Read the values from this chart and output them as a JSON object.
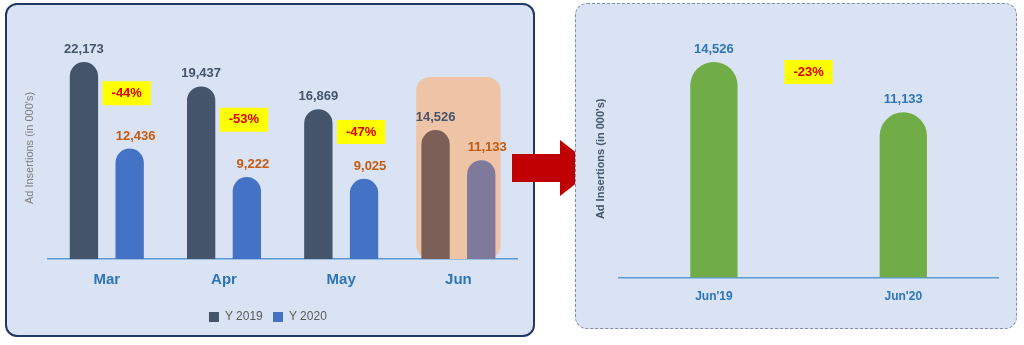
{
  "chart_data": [
    {
      "type": "bar",
      "ylabel": "Ad Insertions (in 000's)",
      "categories": [
        "Mar",
        "Apr",
        "May",
        "Jun"
      ],
      "series": [
        {
          "name": "Y 2019",
          "color": "#44546a",
          "colors": [
            "#44546a",
            "#44546a",
            "#44546a",
            "#7b5e55"
          ],
          "values": [
            22173,
            19437,
            16869,
            14526
          ],
          "value_labels": [
            "22,173",
            "19,437",
            "16,869",
            "14,526"
          ]
        },
        {
          "name": "Y 2020",
          "color": "#4472c4",
          "colors": [
            "#4472c4",
            "#4472c4",
            "#4472c4",
            "#7f7a9c"
          ],
          "values": [
            12436,
            9222,
            9025,
            11133
          ],
          "value_labels": [
            "12,436",
            "9,222",
            "9,025",
            "11,133"
          ]
        }
      ],
      "bands": [
        {
          "axis": "x",
          "from": "Jun",
          "to": "Jun",
          "color": "#eec3a6"
        }
      ],
      "annotations": [
        "-44%",
        "-53%",
        "-47%"
      ],
      "legend": "bottom",
      "grid": false
    },
    {
      "type": "bar",
      "ylabel": "Ad Insertions (in 000's)",
      "categories": [
        "Jun'19",
        "Jun'20"
      ],
      "values": [
        14526,
        11133
      ],
      "value_labels": [
        "14,526",
        "11,133"
      ],
      "color": "#70ad47",
      "annotations": [
        "-23%"
      ],
      "legend": false,
      "grid": false
    }
  ]
}
